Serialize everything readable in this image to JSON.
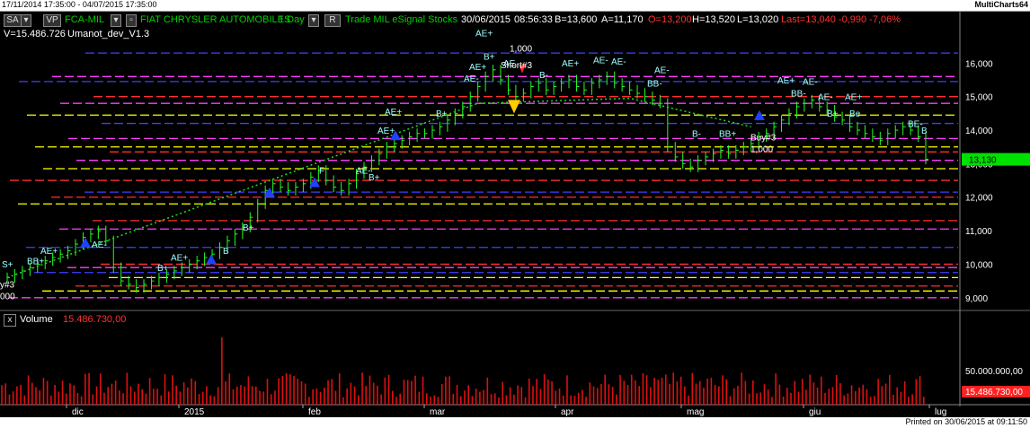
{
  "window": {
    "date_range": "17/11/2014 17:35:00 - 04/07/2015 17:35:00",
    "app_name": "MultiCharts64"
  },
  "toolbar": {
    "sa_label": "SA",
    "vp_label": "VP",
    "symbol": "FCA-MIL",
    "company": "FIAT CHRYSLER AUTOMOBILES",
    "interval": "1 Day",
    "r_label": "R",
    "info": "Trade  MIL  eSignal  Stocks",
    "date": "30/06/2015",
    "time": "08:56:33",
    "bid": "B=13,600",
    "ask": "A=11,170",
    "open": "O=13,200",
    "high": "H=13,520",
    "low": "L=13,020",
    "last": "Last=13,040  -0,990  -7,06%"
  },
  "price_pane": {
    "volume_label": "V=15.486.726",
    "strategy": "Umanot_dev_V1.3",
    "y_labels": [
      "16,000",
      "15,000",
      "14,000",
      "13,000",
      "12,000",
      "11,000",
      "10,000",
      "9,000"
    ],
    "last_price": "13,130",
    "left_edge_label_a": "y#3",
    "left_edge_label_b": "000"
  },
  "volume_pane": {
    "close_icon": "x",
    "title": "Volume",
    "value": "15.486.730,00",
    "y_label": "50.000.000,00",
    "last_volume": "15.486.730,00"
  },
  "x_labels": [
    "dic",
    "2015",
    "feb",
    "mar",
    "apr",
    "mag",
    "giu",
    "lug"
  ],
  "markers": {
    "short_label": "Short#3",
    "short_qty": "1,000",
    "buy_label": "Buy#3",
    "buy_qty": "1,000"
  },
  "chart_data": {
    "type": "candlestick",
    "title": "FCA-MIL  1 Day",
    "ylim": [
      8.7,
      17.0
    ],
    "y_ticks": [
      9,
      10,
      11,
      12,
      13,
      14,
      15,
      16
    ],
    "x_ticks": [
      "dic",
      "2015",
      "feb",
      "mar",
      "apr",
      "mag",
      "giu",
      "lug"
    ],
    "closes": [
      9.6,
      9.7,
      9.8,
      9.9,
      10.0,
      10.1,
      10.2,
      10.3,
      10.4,
      10.6,
      10.8,
      10.9,
      11.0,
      10.7,
      9.9,
      9.5,
      9.4,
      9.3,
      9.4,
      9.5,
      9.6,
      9.7,
      9.8,
      9.9,
      10.0,
      10.1,
      10.2,
      10.3,
      10.5,
      10.7,
      10.9,
      11.1,
      11.4,
      11.8,
      12.2,
      12.4,
      12.3,
      12.2,
      12.3,
      12.4,
      12.6,
      12.8,
      12.5,
      12.3,
      12.2,
      12.4,
      12.7,
      12.9,
      13.1,
      13.3,
      13.5,
      13.6,
      13.7,
      13.8,
      13.9,
      13.9,
      14.0,
      14.1,
      14.3,
      14.5,
      14.7,
      15.0,
      15.3,
      15.6,
      15.8,
      15.5,
      15.2,
      15.0,
      15.1,
      15.3,
      15.4,
      15.2,
      15.3,
      15.4,
      15.5,
      15.3,
      15.2,
      15.4,
      15.5,
      15.6,
      15.4,
      15.3,
      15.2,
      15.1,
      15.0,
      14.9,
      14.8,
      13.5,
      13.2,
      13.0,
      12.9,
      13.1,
      13.2,
      13.3,
      13.4,
      13.3,
      13.4,
      13.5,
      13.6,
      13.8,
      13.9,
      14.1,
      14.3,
      14.5,
      14.7,
      14.8,
      14.9,
      14.7,
      14.6,
      14.4,
      14.3,
      14.1,
      14.0,
      13.9,
      13.8,
      13.7,
      13.9,
      14.0,
      14.1,
      14.0,
      13.8,
      13.13
    ],
    "volume_series_name": "Volume"
  }
}
